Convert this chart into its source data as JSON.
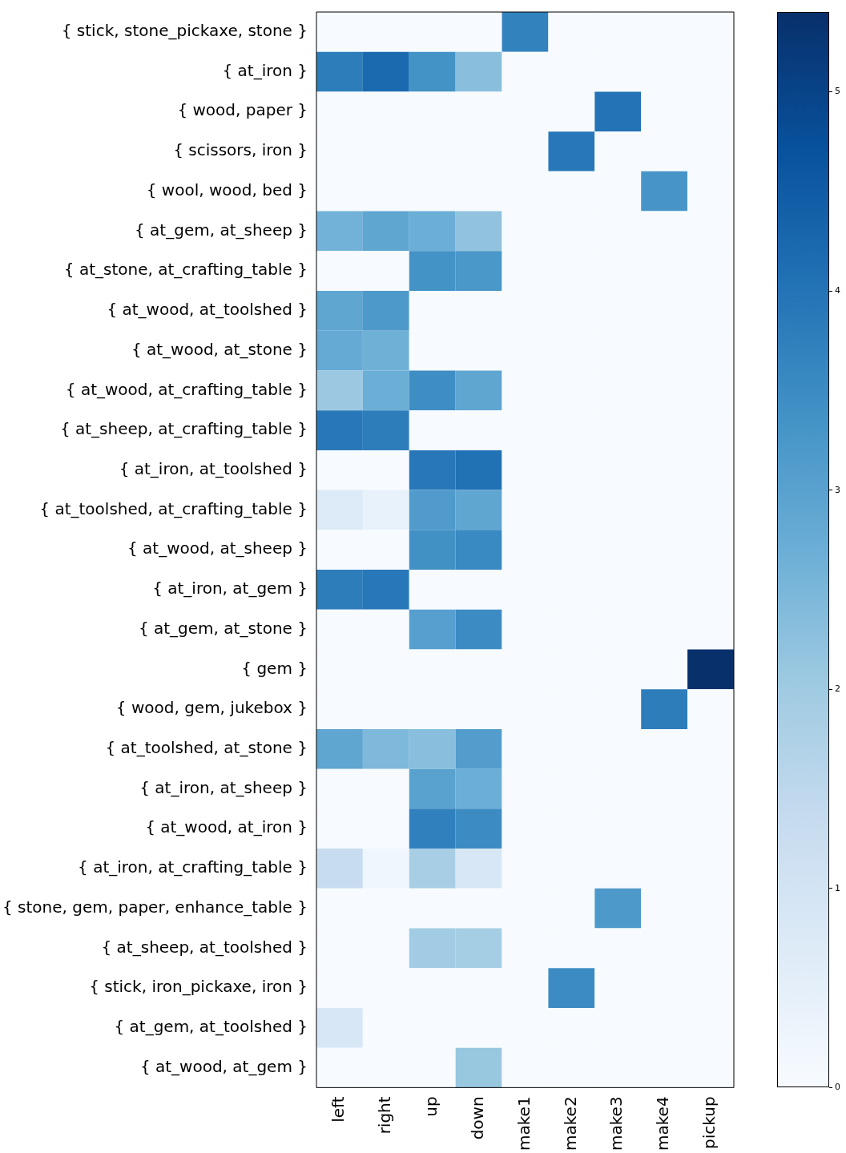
{
  "chart_data": {
    "type": "heatmap",
    "categories": [
      "left",
      "right",
      "up",
      "down",
      "make1",
      "make2",
      "make3",
      "make4",
      "pickup"
    ],
    "y_categories": [
      "{ stick, stone_pickaxe, stone }",
      "{ at_iron }",
      "{ wood, paper }",
      "{ scissors, iron }",
      "{ wool, wood, bed }",
      "{ at_gem, at_sheep }",
      "{ at_stone, at_crafting_table }",
      "{ at_wood, at_toolshed }",
      "{ at_wood, at_stone }",
      "{ at_wood, at_crafting_table }",
      "{ at_sheep, at_crafting_table }",
      "{ at_iron, at_toolshed }",
      "{ at_toolshed, at_crafting_table }",
      "{ at_wood, at_sheep }",
      "{ at_iron, at_gem }",
      "{ at_gem, at_stone }",
      "{ gem }",
      "{ wood, gem, jukebox }",
      "{ at_toolshed, at_stone }",
      "{ at_iron, at_sheep }",
      "{ at_wood, at_iron }",
      "{ at_iron, at_crafting_table }",
      "{ stone, gem, paper, enhance_table }",
      "{ at_sheep, at_toolshed }",
      "{ stick, iron_pickaxe, iron }",
      "{ at_gem, at_toolshed }",
      "{ at_wood, at_gem }"
    ],
    "cells": [
      [
        0,
        0,
        0,
        0,
        3.7,
        0,
        0,
        0,
        0
      ],
      [
        3.8,
        4.2,
        3.35,
        2.3,
        0,
        0,
        0,
        0,
        0
      ],
      [
        0,
        0,
        0,
        0,
        0,
        0,
        4.0,
        0,
        0
      ],
      [
        0,
        0,
        0,
        0,
        0,
        3.9,
        0,
        0,
        0
      ],
      [
        0,
        0,
        0,
        0,
        0,
        0,
        0,
        3.3,
        0
      ],
      [
        2.6,
        2.9,
        2.7,
        2.2,
        0,
        0,
        0,
        0,
        0
      ],
      [
        0,
        0,
        3.35,
        3.25,
        0,
        0,
        0,
        0,
        0
      ],
      [
        2.9,
        3.2,
        0,
        0,
        0,
        0,
        0,
        0,
        0
      ],
      [
        2.8,
        2.65,
        0,
        0,
        0,
        0,
        0,
        0,
        0
      ],
      [
        2.05,
        2.7,
        3.45,
        2.9,
        0,
        0,
        0,
        0,
        0
      ],
      [
        3.9,
        3.8,
        0,
        0,
        0,
        0,
        0,
        0,
        0
      ],
      [
        0,
        0,
        3.9,
        4.05,
        0,
        0,
        0,
        0,
        0
      ],
      [
        0.7,
        0.4,
        3.15,
        2.9,
        0,
        0,
        0,
        0,
        0
      ],
      [
        0,
        0,
        3.4,
        3.55,
        0,
        0,
        0,
        0,
        0
      ],
      [
        3.8,
        3.9,
        0,
        0,
        0,
        0,
        0,
        0,
        0
      ],
      [
        0,
        0,
        3.05,
        3.5,
        0,
        0,
        0,
        0,
        0
      ],
      [
        0,
        0,
        0,
        0,
        0,
        0,
        0,
        0,
        5.4
      ],
      [
        0,
        0,
        0,
        0,
        0,
        0,
        0,
        3.8,
        0
      ],
      [
        2.9,
        2.45,
        2.3,
        3.1,
        0,
        0,
        0,
        0,
        0
      ],
      [
        0,
        0,
        3.0,
        2.7,
        0,
        0,
        0,
        0,
        0
      ],
      [
        0,
        0,
        3.75,
        3.5,
        0,
        0,
        0,
        0,
        0
      ],
      [
        1.3,
        0.2,
        1.85,
        0.85,
        0,
        0,
        0,
        0,
        0
      ],
      [
        0,
        0,
        0,
        0,
        0,
        0,
        3.2,
        0,
        0
      ],
      [
        0,
        0,
        1.95,
        1.9,
        0,
        0,
        0,
        0,
        0
      ],
      [
        0,
        0,
        0,
        0,
        0,
        3.5,
        0,
        0,
        0
      ],
      [
        0.85,
        0,
        0,
        0,
        0,
        0,
        0,
        0,
        0
      ],
      [
        0,
        0,
        0,
        2.1,
        0,
        0,
        0,
        0,
        0
      ]
    ],
    "clim": [
      0,
      5.4
    ],
    "cticks": [
      0,
      1,
      2,
      3,
      4,
      5
    ]
  }
}
